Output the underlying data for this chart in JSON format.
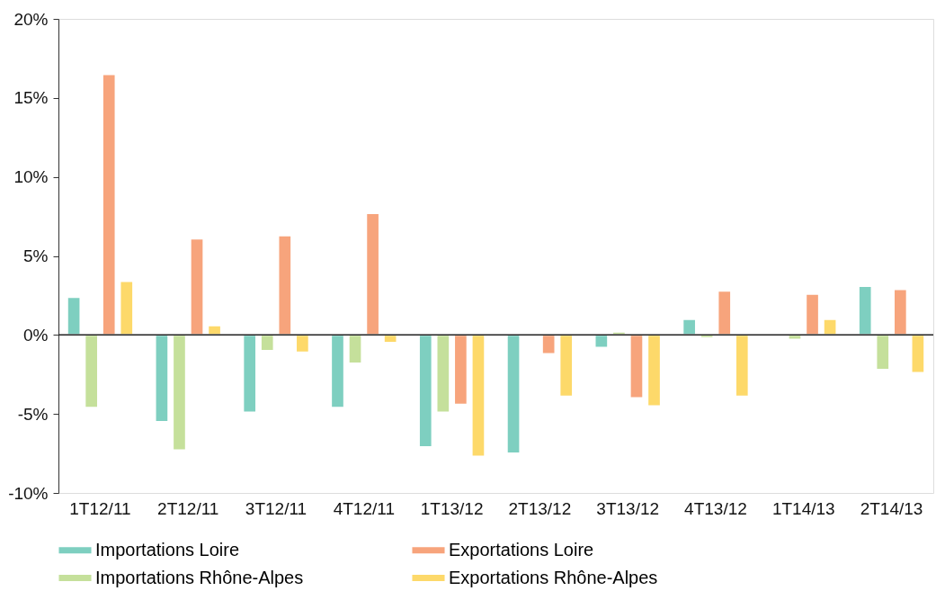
{
  "chart_data": {
    "type": "bar",
    "categories": [
      "1T12/11",
      "2T12/11",
      "3T12/11",
      "4T12/11",
      "1T13/12",
      "2T13/12",
      "3T13/12",
      "4T13/12",
      "1T14/13",
      "2T14/13"
    ],
    "series": [
      {
        "name": "Importations Loire",
        "color": "#7ecfc0",
        "values": [
          2.4,
          -5.5,
          -4.9,
          -4.6,
          -7.1,
          -7.5,
          -0.8,
          1.0,
          null,
          3.1
        ]
      },
      {
        "name": "Importations Rhône-Alpes",
        "color": "#c5e09b",
        "values": [
          -4.6,
          -7.3,
          -1.0,
          -1.8,
          -4.9,
          null,
          0.2,
          -0.2,
          -0.3,
          -2.2
        ]
      },
      {
        "name": "Exportations Loire",
        "color": "#f7a47c",
        "values": [
          16.5,
          6.1,
          6.3,
          7.7,
          -4.4,
          -1.2,
          -4.0,
          2.8,
          2.6,
          2.9
        ]
      },
      {
        "name": "Exportations Rhône-Alpes",
        "color": "#fdd96a",
        "values": [
          3.4,
          0.6,
          -1.1,
          -0.5,
          -7.7,
          -3.9,
          -4.5,
          -3.9,
          1.0,
          -2.4
        ]
      }
    ],
    "ylim": [
      -10,
      20
    ],
    "yticks": [
      {
        "value": -10,
        "label": "-10%"
      },
      {
        "value": -5,
        "label": "-5%"
      },
      {
        "value": 0,
        "label": "0%"
      },
      {
        "value": 5,
        "label": "5%"
      },
      {
        "value": 10,
        "label": "10%"
      },
      {
        "value": 15,
        "label": "15%"
      },
      {
        "value": 20,
        "label": "20%"
      }
    ],
    "ref_lines": [
      {
        "axis": "y",
        "value": 0,
        "color": "#222222"
      }
    ],
    "grid": false,
    "legend": "bottom"
  }
}
